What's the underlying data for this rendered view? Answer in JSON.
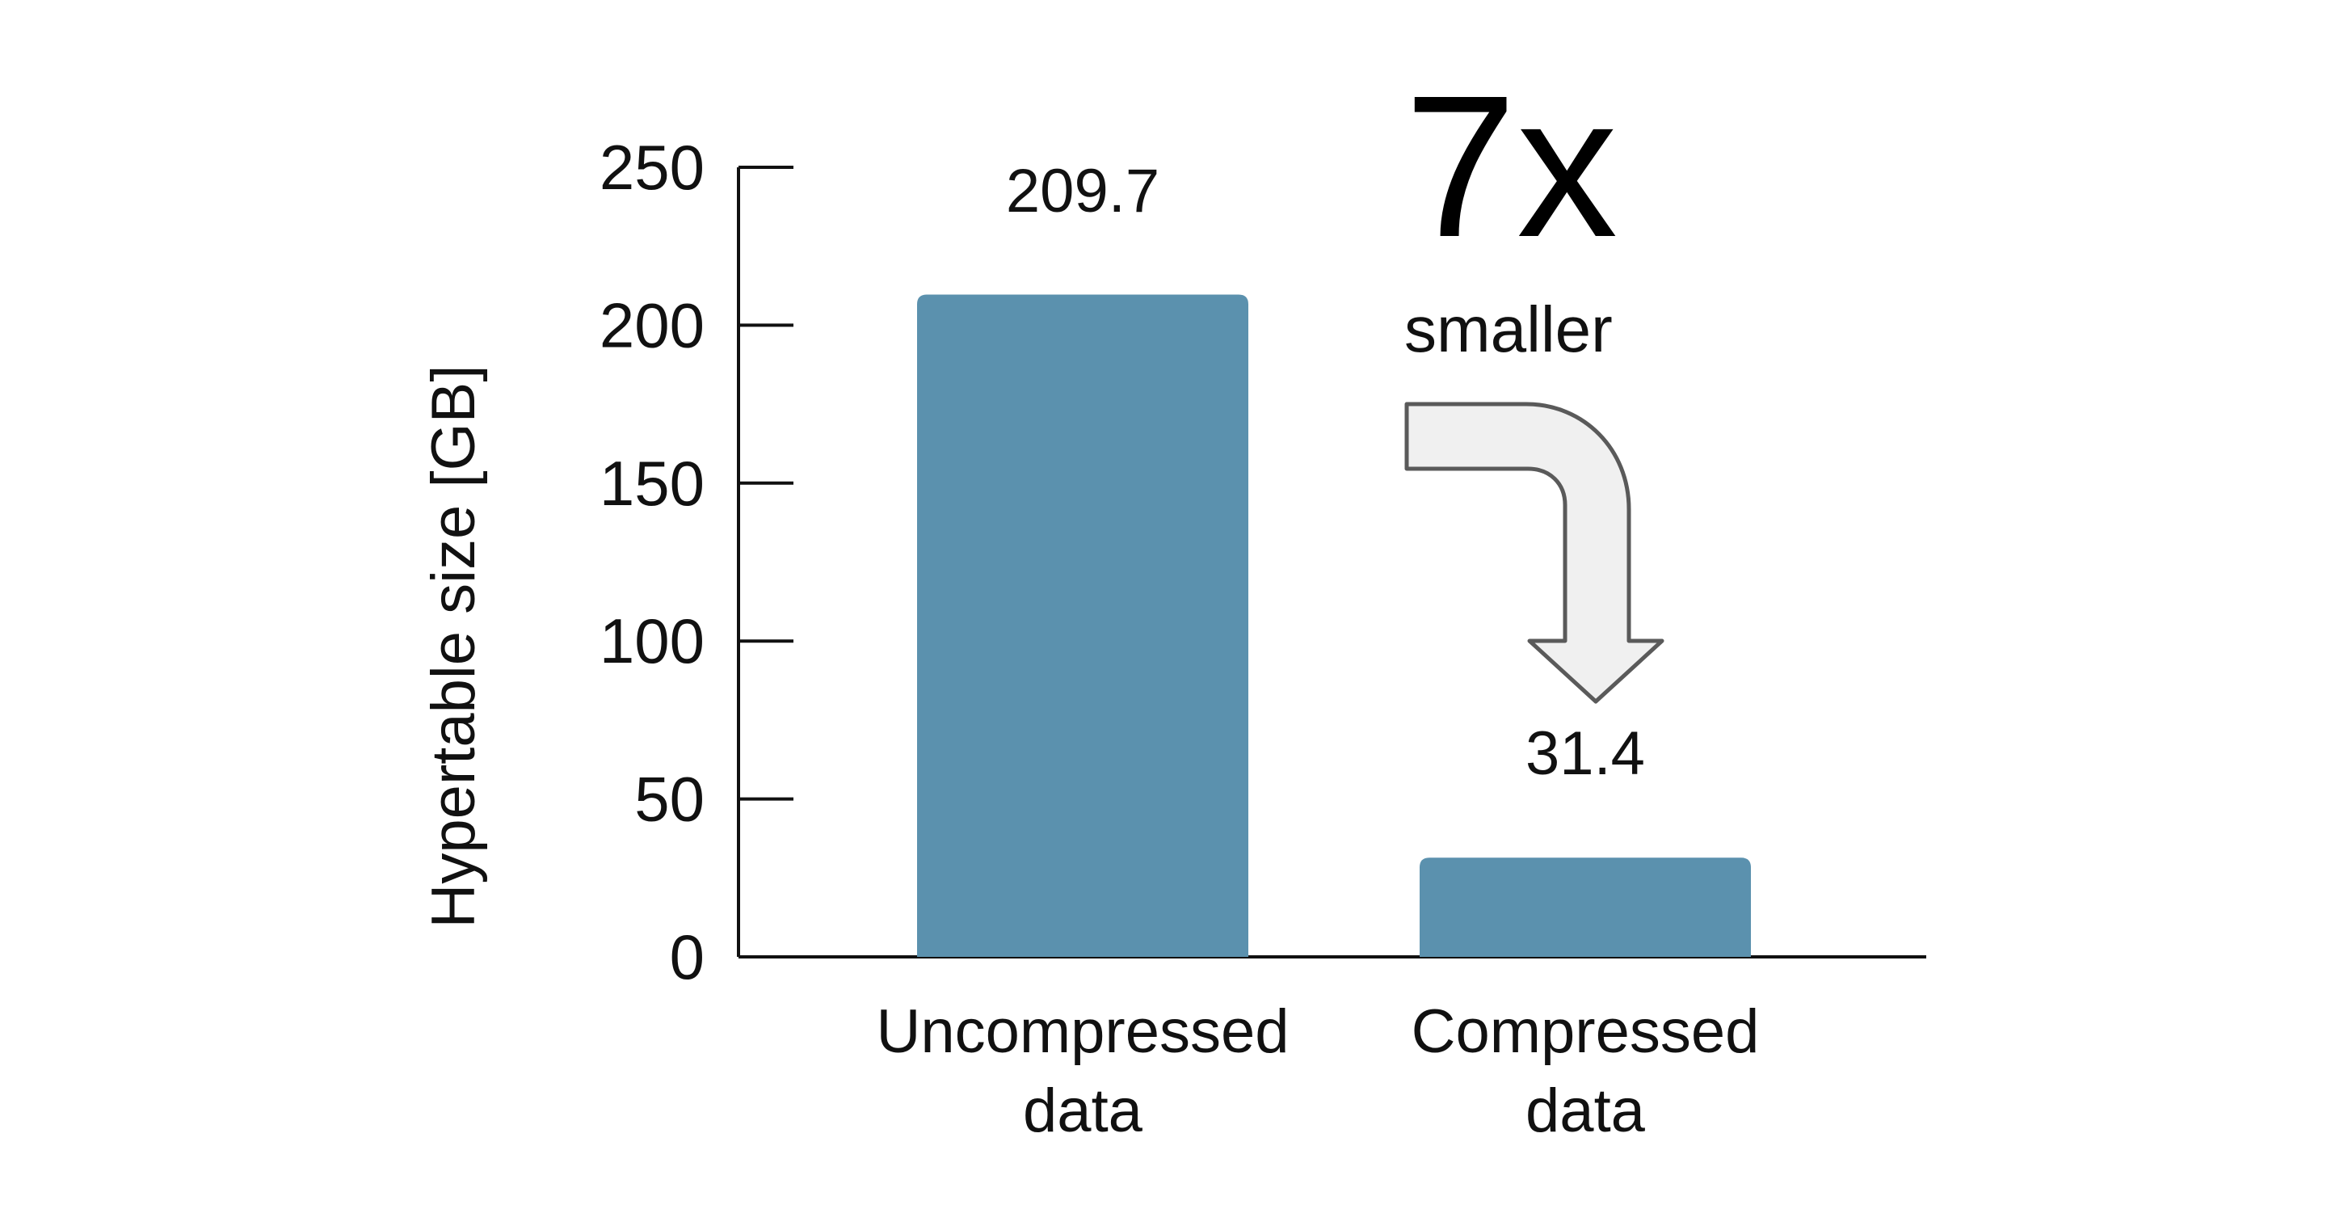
{
  "chart_data": {
    "type": "bar",
    "categories": [
      [
        "Uncompressed",
        "data"
      ],
      [
        "Compressed",
        "data"
      ]
    ],
    "values": [
      209.7,
      31.4
    ],
    "value_labels": [
      "209.7",
      "31.4"
    ],
    "ylabel": "Hypertable size [GB]",
    "ylim": [
      0,
      250
    ],
    "yticks": [
      0,
      50,
      100,
      150,
      200,
      250
    ],
    "grid": false,
    "bar_color": "#5b91ae",
    "annotation": {
      "big": "7x",
      "small": "smaller",
      "arrow_fill": "#f0f0f0",
      "arrow_stroke": "#5a5a5a"
    }
  }
}
